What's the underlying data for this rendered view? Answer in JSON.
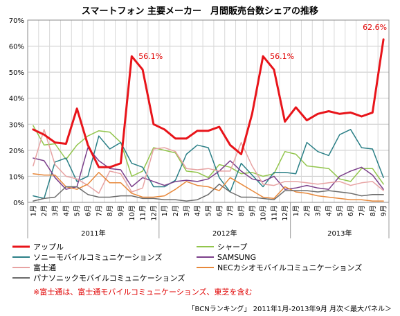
{
  "chart_data": {
    "type": "line",
    "title": "スマートフォン 主要メーカー　月間販売台数シェアの推移",
    "ylim": [
      0,
      70
    ],
    "yticks": [
      "0%",
      "10%",
      "20%",
      "30%",
      "40%",
      "50%",
      "60%",
      "70%"
    ],
    "x": [
      "1月",
      "2月",
      "3月",
      "4月",
      "5月",
      "6月",
      "7月",
      "8月",
      "9月",
      "10月",
      "11月",
      "12月",
      "1月",
      "2月",
      "3月",
      "4月",
      "5月",
      "6月",
      "7月",
      "8月",
      "9月",
      "10月",
      "11月",
      "12月",
      "1月",
      "2月",
      "3月",
      "4月",
      "5月",
      "6月",
      "7月",
      "8月",
      "9月"
    ],
    "years": [
      "2011年",
      "2012年",
      "2013年"
    ],
    "grid": true,
    "legend_position": "bottom",
    "series": [
      {
        "name": "アップル",
        "color": "#e8141a",
        "width": 3,
        "values": [
          28,
          26,
          23,
          22.5,
          36,
          22,
          13.5,
          13.5,
          15,
          56.1,
          51,
          30,
          28,
          24.5,
          24.5,
          27.5,
          27.5,
          29,
          22,
          18.5,
          34,
          56.1,
          51,
          31,
          36.5,
          31.5,
          34,
          35,
          34,
          34.5,
          33,
          34.5,
          62.6
        ]
      },
      {
        "name": "シャープ",
        "color": "#92c54c",
        "width": 1.5,
        "values": [
          29.5,
          22,
          22.5,
          16.5,
          22,
          25.5,
          27.5,
          27,
          23,
          10,
          12,
          21,
          20,
          19,
          12,
          11.5,
          9.5,
          14.5,
          13.5,
          11,
          11.5,
          10,
          11,
          19.5,
          18.5,
          14,
          13.5,
          13,
          9,
          8,
          13,
          13,
          7
        ]
      },
      {
        "name": "ソニーモバイルコミュニケーションズ",
        "color": "#2a7f86",
        "width": 1.5,
        "values": [
          2.5,
          1.5,
          15.5,
          17,
          8,
          10,
          25.5,
          20.5,
          23,
          15,
          13.5,
          6,
          6,
          8.5,
          18.5,
          22,
          21,
          9.5,
          4,
          15,
          10.5,
          6,
          11.5,
          11.5,
          11,
          23,
          19.5,
          18,
          26,
          28,
          21,
          20.5,
          9.5
        ]
      },
      {
        "name": "SAMSUNG",
        "color": "#7b3f8a",
        "width": 1.5,
        "values": [
          17,
          16,
          9.5,
          5,
          6,
          21,
          16,
          13,
          12.5,
          6,
          9.5,
          8,
          6.5,
          8,
          8.5,
          8,
          9,
          12,
          16,
          12,
          9,
          8,
          10,
          5,
          5.5,
          6.5,
          5.5,
          5,
          10,
          12,
          13.5,
          10.5,
          5
        ]
      },
      {
        "name": "富士通",
        "color": "#e7a2a2",
        "width": 1.5,
        "values": [
          14,
          28,
          14.5,
          10,
          9,
          6.5,
          3.5,
          12,
          11,
          4,
          5.5,
          20.5,
          21,
          19.5,
          13,
          12.5,
          13,
          12,
          12,
          23,
          14,
          7,
          6.5,
          8,
          8,
          7.5,
          7,
          7.5,
          8,
          6.5,
          7.5,
          8,
          4.5
        ]
      },
      {
        "name": "NECカシオモバイルコミュニケーションズ",
        "color": "#e8883a",
        "width": 1.5,
        "values": [
          11,
          10.5,
          10.5,
          6,
          5,
          7,
          11.5,
          7.5,
          7.5,
          3.5,
          2,
          2,
          2.5,
          5,
          8,
          6.5,
          6,
          4.5,
          9.5,
          7,
          4.5,
          2,
          1.5,
          6,
          4,
          3.5,
          2.5,
          2,
          1.5,
          1,
          1,
          0.5,
          0.5
        ]
      },
      {
        "name": "パナソニックモバイルコミュニケーションズ",
        "color": "#6b6b6b",
        "width": 1.5,
        "values": [
          0.5,
          1.5,
          2,
          6,
          6,
          3,
          2,
          2,
          2.5,
          2.5,
          1.5,
          1.5,
          1,
          1,
          0.5,
          1,
          3,
          7,
          4,
          2,
          2,
          1.5,
          1,
          4.5,
          4.5,
          4.5,
          4,
          4.5,
          4,
          3.5,
          2.5,
          3,
          3
        ]
      }
    ],
    "annotations": [
      {
        "label": "56.1%",
        "index": 9
      },
      {
        "label": "56.1%",
        "index": 21
      },
      {
        "label": "62.6%",
        "index": 32
      }
    ],
    "note": "※富士通は、富士通モバイルコミュニケーションズ、東芝を含む",
    "source": "「BCNランキング」 2011年1月-2013年9月 月次＜最大パネル＞"
  }
}
